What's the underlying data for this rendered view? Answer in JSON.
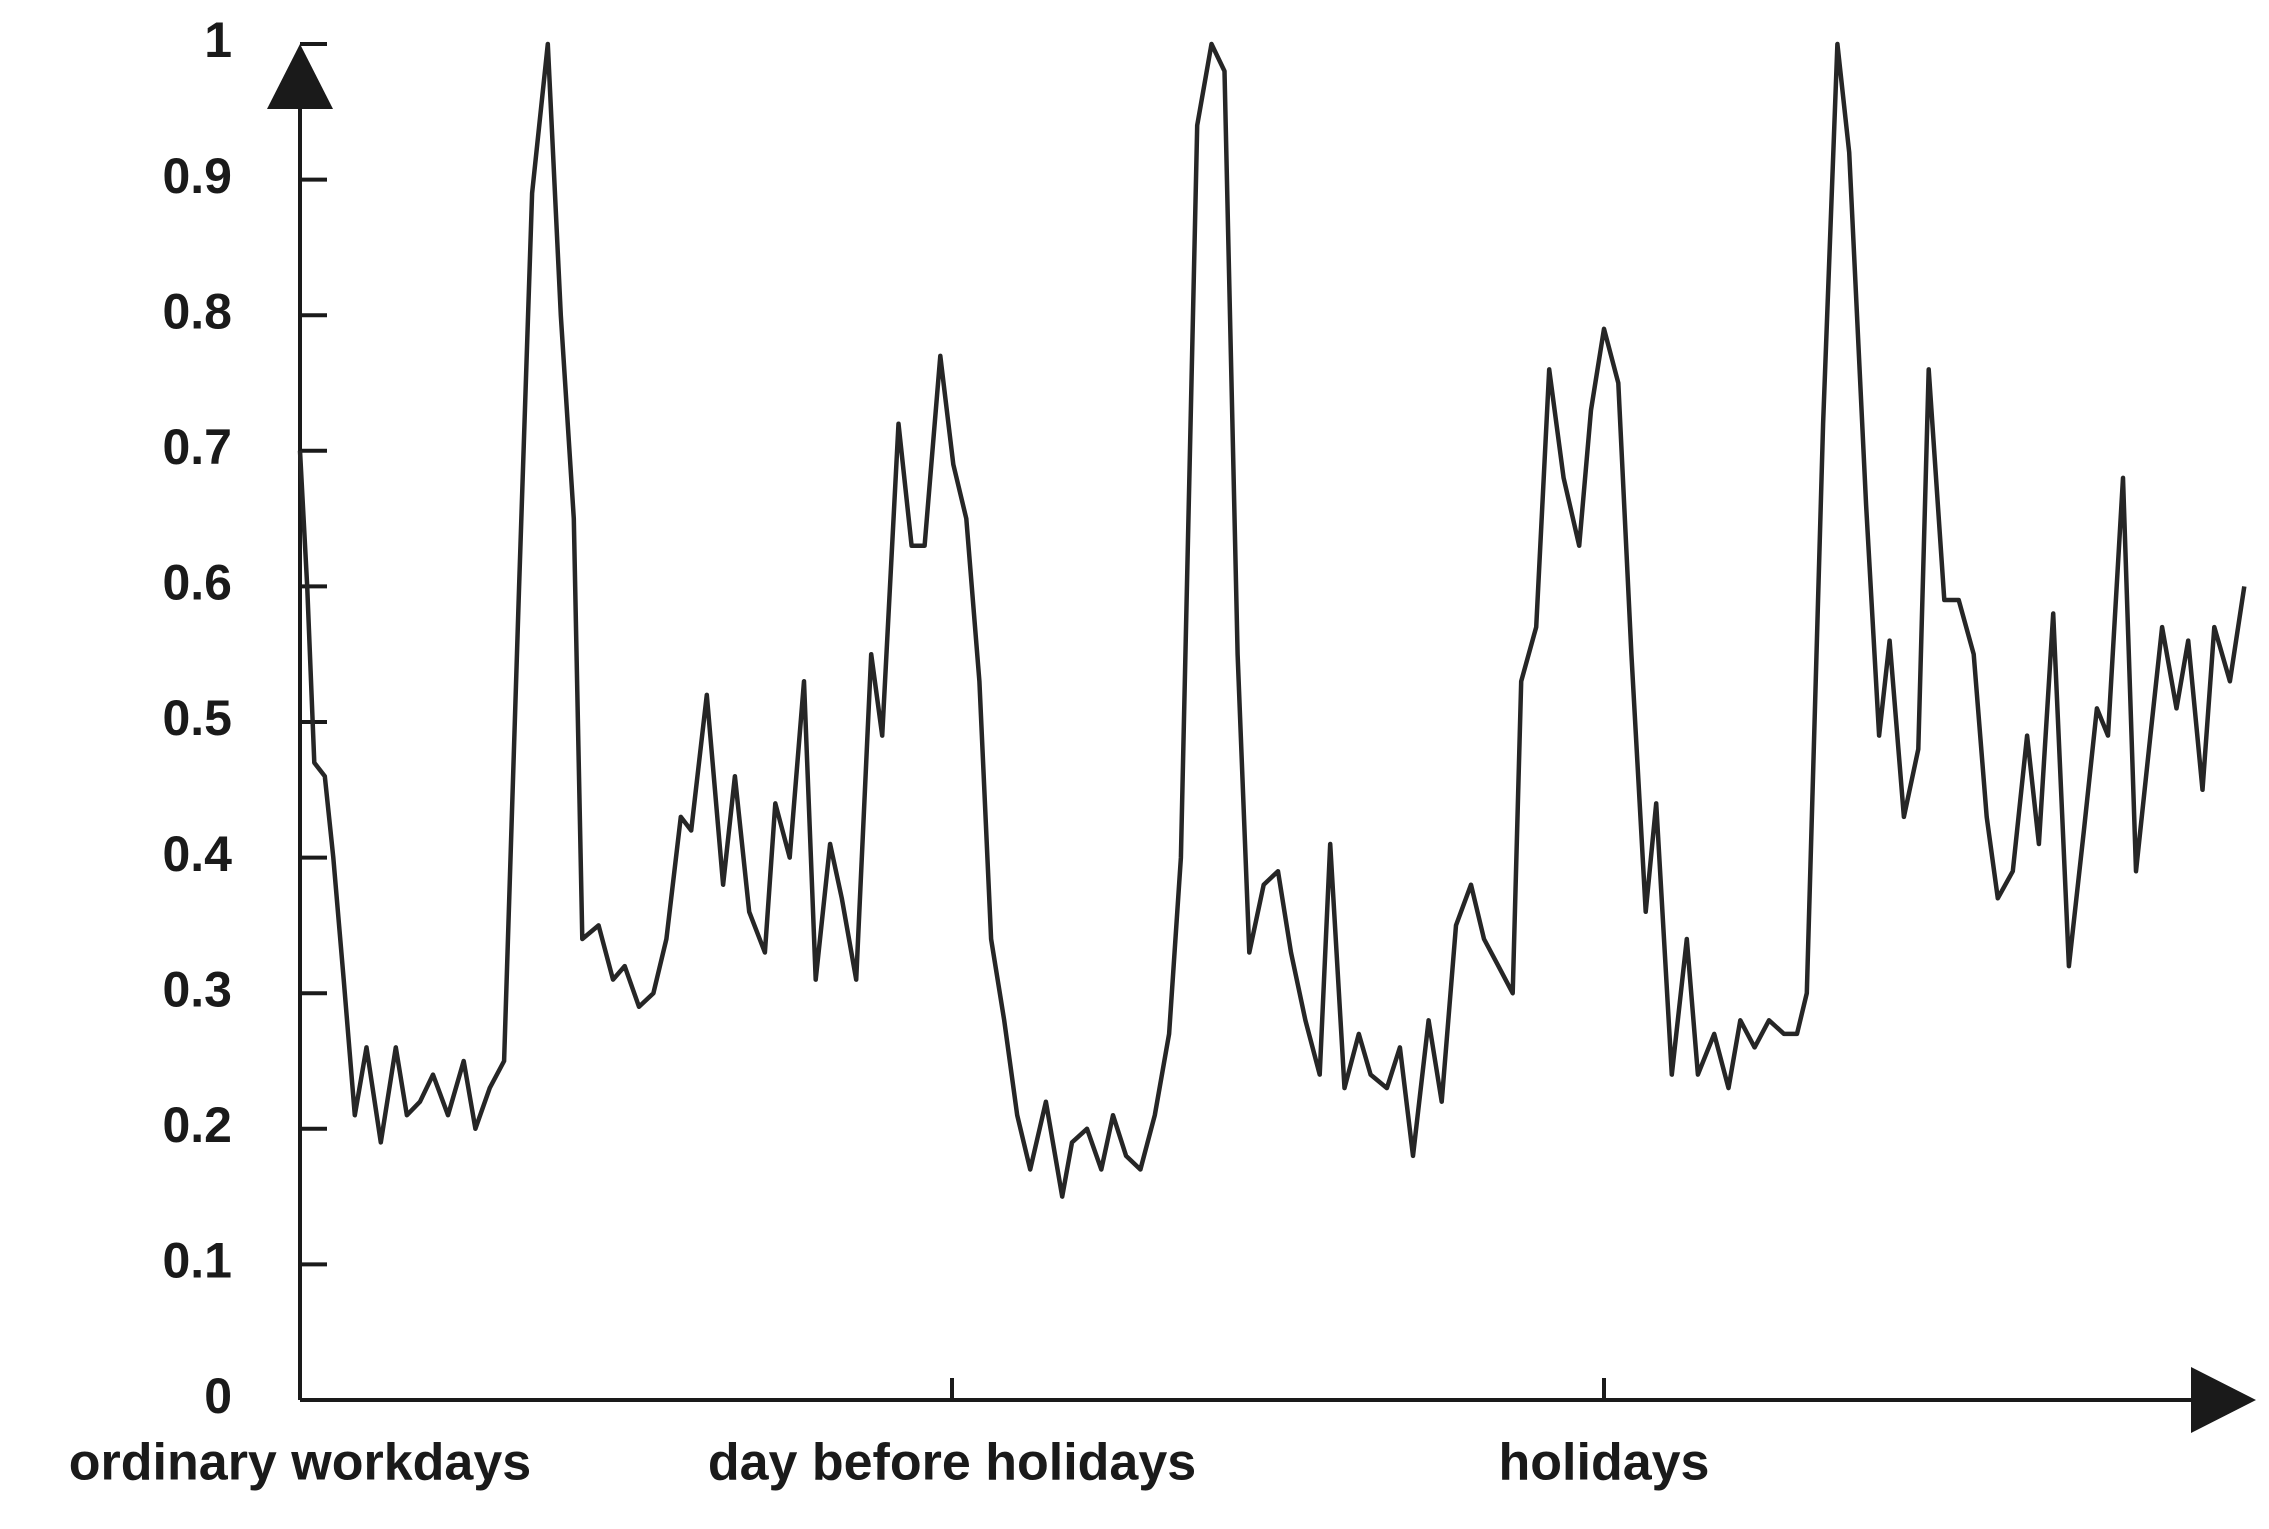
{
  "chart_data": {
    "type": "line",
    "color": "#262626",
    "xlim": [
      0,
      3
    ],
    "ylim": [
      0,
      1
    ],
    "yticks": [
      0,
      0.1,
      0.2,
      0.3,
      0.4,
      0.5,
      0.6,
      0.7,
      0.8,
      0.9,
      1
    ],
    "xticks": [
      {
        "value": 0,
        "label": "ordinary workdays"
      },
      {
        "value": 1,
        "label": "day before holidays"
      },
      {
        "value": 2,
        "label": "holidays"
      }
    ],
    "x": [
      0,
      0.011,
      0.022,
      0.038,
      0.051,
      0.067,
      0.084,
      0.102,
      0.124,
      0.147,
      0.164,
      0.184,
      0.204,
      0.227,
      0.251,
      0.269,
      0.291,
      0.313,
      0.336,
      0.356,
      0.38,
      0.4,
      0.42,
      0.433,
      0.458,
      0.48,
      0.498,
      0.52,
      0.542,
      0.562,
      0.584,
      0.6,
      0.624,
      0.649,
      0.667,
      0.689,
      0.713,
      0.729,
      0.751,
      0.773,
      0.791,
      0.813,
      0.831,
      0.853,
      0.876,
      0.893,
      0.918,
      0.938,
      0.958,
      0.982,
      1.002,
      1.022,
      1.042,
      1.06,
      1.08,
      1.1,
      1.12,
      1.144,
      1.169,
      1.184,
      1.207,
      1.229,
      1.247,
      1.267,
      1.289,
      1.311,
      1.333,
      1.351,
      1.376,
      1.398,
      1.418,
      1.438,
      1.456,
      1.478,
      1.5,
      1.52,
      1.542,
      1.564,
      1.58,
      1.602,
      1.624,
      1.642,
      1.667,
      1.687,
      1.707,
      1.731,
      1.751,
      1.773,
      1.796,
      1.816,
      1.838,
      1.86,
      1.873,
      1.896,
      1.916,
      1.938,
      1.962,
      1.98,
      2,
      2.022,
      2.042,
      2.064,
      2.08,
      2.104,
      2.127,
      2.144,
      2.169,
      2.191,
      2.209,
      2.231,
      2.253,
      2.276,
      2.296,
      2.311,
      2.336,
      2.358,
      2.376,
      2.402,
      2.422,
      2.438,
      2.46,
      2.482,
      2.498,
      2.522,
      2.544,
      2.567,
      2.587,
      2.604,
      2.627,
      2.649,
      2.667,
      2.689,
      2.713,
      2.736,
      2.756,
      2.773,
      2.796,
      2.816,
      2.838,
      2.856,
      2.878,
      2.896,
      2.918,
      2.936,
      2.96,
      2.982
    ],
    "values": [
      0.7,
      0.6,
      0.47,
      0.46,
      0.4,
      0.31,
      0.21,
      0.26,
      0.19,
      0.26,
      0.21,
      0.22,
      0.24,
      0.21,
      0.25,
      0.2,
      0.23,
      0.25,
      0.6,
      0.89,
      1.0,
      0.8,
      0.65,
      0.34,
      0.35,
      0.31,
      0.32,
      0.29,
      0.3,
      0.34,
      0.43,
      0.42,
      0.52,
      0.38,
      0.46,
      0.36,
      0.33,
      0.44,
      0.4,
      0.53,
      0.31,
      0.41,
      0.37,
      0.31,
      0.55,
      0.49,
      0.72,
      0.63,
      0.63,
      0.77,
      0.69,
      0.65,
      0.53,
      0.34,
      0.28,
      0.21,
      0.17,
      0.22,
      0.15,
      0.19,
      0.2,
      0.17,
      0.21,
      0.18,
      0.17,
      0.21,
      0.27,
      0.4,
      0.94,
      1.0,
      0.98,
      0.55,
      0.33,
      0.38,
      0.39,
      0.33,
      0.28,
      0.24,
      0.41,
      0.23,
      0.27,
      0.24,
      0.23,
      0.26,
      0.18,
      0.28,
      0.22,
      0.35,
      0.38,
      0.34,
      0.32,
      0.3,
      0.53,
      0.57,
      0.76,
      0.68,
      0.63,
      0.73,
      0.79,
      0.75,
      0.55,
      0.36,
      0.44,
      0.24,
      0.34,
      0.24,
      0.27,
      0.23,
      0.28,
      0.26,
      0.28,
      0.27,
      0.27,
      0.3,
      0.72,
      1.0,
      0.92,
      0.66,
      0.49,
      0.56,
      0.43,
      0.48,
      0.76,
      0.59,
      0.59,
      0.55,
      0.43,
      0.37,
      0.39,
      0.49,
      0.41,
      0.58,
      0.32,
      0.42,
      0.51,
      0.49,
      0.68,
      0.39,
      0.49,
      0.57,
      0.51,
      0.56,
      0.45,
      0.57,
      0.53,
      0.6
    ]
  }
}
